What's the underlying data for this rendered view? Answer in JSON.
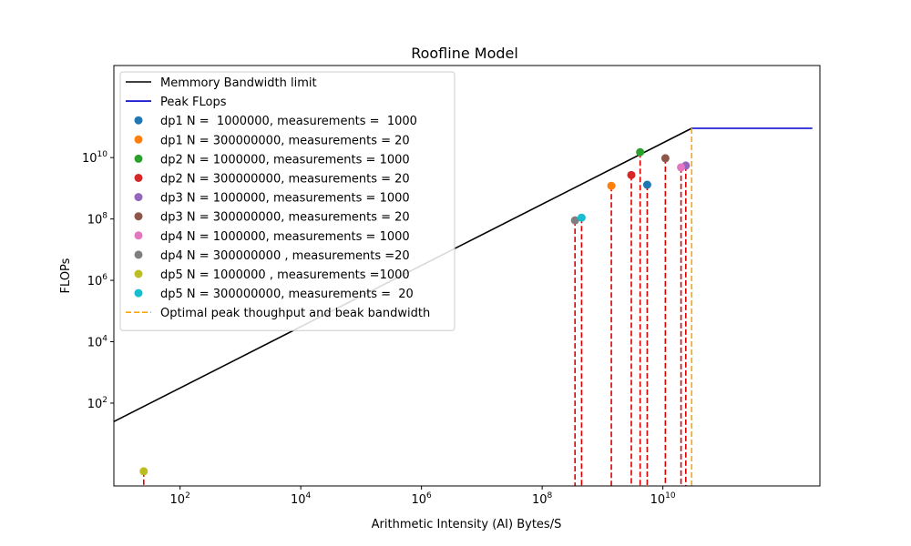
{
  "chart_data": {
    "type": "scatter",
    "title": "Roofline Model",
    "xlabel": "Arithmetic Intensity (AI) Bytes/S",
    "ylabel": "FLOPs",
    "x_scale": "log",
    "y_scale": "log",
    "xlim": [
      8,
      4000000000000
    ],
    "ylim": [
      0.2,
      10000000000000
    ],
    "x_ticks": [
      {
        "value": 100,
        "base": "10",
        "exp": "2"
      },
      {
        "value": 10000,
        "base": "10",
        "exp": "4"
      },
      {
        "value": 1000000,
        "base": "10",
        "exp": "6"
      },
      {
        "value": 100000000,
        "base": "10",
        "exp": "8"
      },
      {
        "value": 10000000000,
        "base": "10",
        "exp": "10"
      }
    ],
    "y_ticks": [
      {
        "value": 100,
        "base": "10",
        "exp": "2"
      },
      {
        "value": 10000,
        "base": "10",
        "exp": "4"
      },
      {
        "value": 1000000,
        "base": "10",
        "exp": "6"
      },
      {
        "value": 100000000,
        "base": "10",
        "exp": "8"
      },
      {
        "value": 10000000000,
        "base": "10",
        "exp": "10"
      }
    ],
    "grid": false,
    "legend_position": "upper left",
    "bandwidth_line": {
      "name": "Memmory Bandwidth limit",
      "color": "#000000",
      "x": [
        8,
        30000000000
      ],
      "y": [
        25,
        90000000000
      ]
    },
    "peak_line": {
      "name": "Peak FLops",
      "color": "#0000cc",
      "x": [
        30000000000,
        3000000000000
      ],
      "y": [
        90000000000,
        90000000000
      ]
    },
    "optimal_line": {
      "name": "Optimal peak thoughput and beak bandwidth",
      "color": "#ffa500",
      "x": 30000000000
    },
    "drop_line_color": "#dd0000",
    "series": [
      {
        "name": "dp1 N =  1000000, measurements =  1000",
        "color": "#1f77b4",
        "x": 5500000000,
        "y": 1300000000
      },
      {
        "name": "dp1 N = 300000000, measurements = 20",
        "color": "#ff7f0e",
        "x": 1400000000,
        "y": 1200000000
      },
      {
        "name": "dp2 N = 1000000, measurements = 1000",
        "color": "#2ca02c",
        "x": 4200000000,
        "y": 15000000000
      },
      {
        "name": "dp2 N = 300000000, measurements = 20",
        "color": "#d62728",
        "x": 3000000000,
        "y": 2700000000
      },
      {
        "name": "dp3 N = 1000000, measurements = 1000",
        "color": "#9467bd",
        "x": 24000000000,
        "y": 5500000000
      },
      {
        "name": "dp3 N = 300000000, measurements = 20",
        "color": "#8c564b",
        "x": 11000000000,
        "y": 9500000000
      },
      {
        "name": "dp4 N = 1000000, measurements = 1000",
        "color": "#e377c2",
        "x": 20000000000,
        "y": 4800000000
      },
      {
        "name": "dp4 N = 300000000 , measurements =20",
        "color": "#7f7f7f",
        "x": 350000000,
        "y": 90000000
      },
      {
        "name": "dp5 N = 1000000 , measurements =1000",
        "color": "#bcbd22",
        "x": 25,
        "y": 0.6
      },
      {
        "name": "dp5 N = 300000000, measurements =  20",
        "color": "#17becf",
        "x": 450000000,
        "y": 110000000
      }
    ]
  }
}
